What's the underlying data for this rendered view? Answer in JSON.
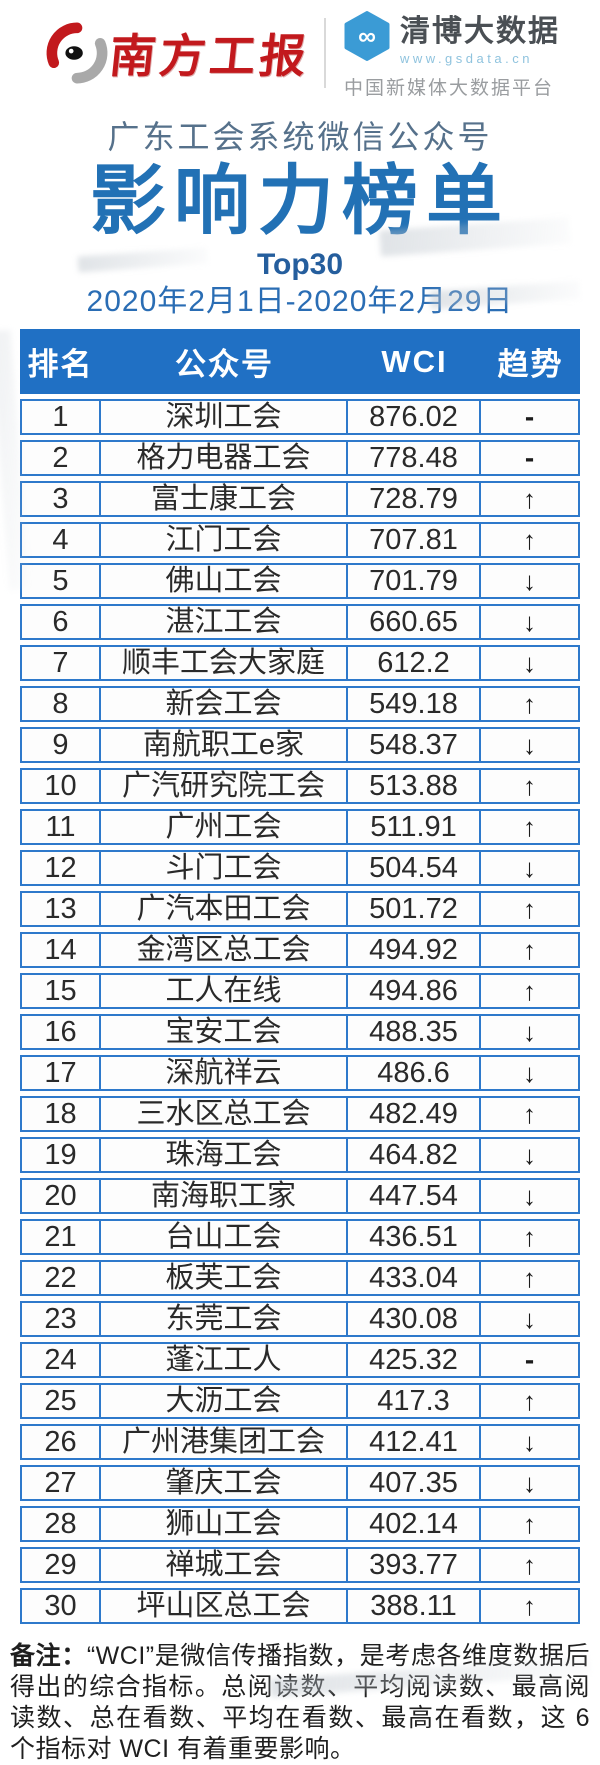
{
  "header": {
    "left_logo_text": "南方工报",
    "right_logo_name": "清博大数据",
    "right_logo_url": "www.gsdata.cn",
    "right_logo_tagline": "中国新媒体大数据平台",
    "infinity_glyph": "∞"
  },
  "title": {
    "subtitle": "广东工会系统微信公众号",
    "main": "影响力榜单",
    "top_label": "Top30",
    "date_range": "2020年2月1日-2020年2月29日"
  },
  "chart_data": {
    "type": "table",
    "title": "广东工会系统微信公众号影响力榜单 Top30",
    "date_range": "2020年2月1日-2020年2月29日",
    "columns": [
      "排名",
      "公众号",
      "WCI",
      "趋势"
    ],
    "rows": [
      [
        "1",
        "深圳工会",
        "876.02",
        "-"
      ],
      [
        "2",
        "格力电器工会",
        "778.48",
        "-"
      ],
      [
        "3",
        "富士康工会",
        "728.79",
        "↑"
      ],
      [
        "4",
        "江门工会",
        "707.81",
        "↑"
      ],
      [
        "5",
        "佛山工会",
        "701.79",
        "↓"
      ],
      [
        "6",
        "湛江工会",
        "660.65",
        "↓"
      ],
      [
        "7",
        "顺丰工会大家庭",
        "612.2",
        "↓"
      ],
      [
        "8",
        "新会工会",
        "549.18",
        "↑"
      ],
      [
        "9",
        "南航职工e家",
        "548.37",
        "↓"
      ],
      [
        "10",
        "广汽研究院工会",
        "513.88",
        "↑"
      ],
      [
        "11",
        "广州工会",
        "511.91",
        "↑"
      ],
      [
        "12",
        "斗门工会",
        "504.54",
        "↓"
      ],
      [
        "13",
        "广汽本田工会",
        "501.72",
        "↑"
      ],
      [
        "14",
        "金湾区总工会",
        "494.92",
        "↑"
      ],
      [
        "15",
        "工人在线",
        "494.86",
        "↑"
      ],
      [
        "16",
        "宝安工会",
        "488.35",
        "↓"
      ],
      [
        "17",
        "深航祥云",
        "486.6",
        "↓"
      ],
      [
        "18",
        "三水区总工会",
        "482.49",
        "↑"
      ],
      [
        "19",
        "珠海工会",
        "464.82",
        "↓"
      ],
      [
        "20",
        "南海职工家",
        "447.54",
        "↓"
      ],
      [
        "21",
        "台山工会",
        "436.51",
        "↑"
      ],
      [
        "22",
        "板芙工会",
        "433.04",
        "↑"
      ],
      [
        "23",
        "东莞工会",
        "430.08",
        "↓"
      ],
      [
        "24",
        "蓬江工人",
        "425.32",
        "-"
      ],
      [
        "25",
        "大沥工会",
        "417.3",
        "↑"
      ],
      [
        "26",
        "广州港集团工会",
        "412.41",
        "↓"
      ],
      [
        "27",
        "肇庆工会",
        "407.35",
        "↓"
      ],
      [
        "28",
        "狮山工会",
        "402.14",
        "↑"
      ],
      [
        "29",
        "禅城工会",
        "393.77",
        "↑"
      ],
      [
        "30",
        "坪山区总工会",
        "388.11",
        "↑"
      ]
    ]
  },
  "note": {
    "label": "备注：",
    "text": "“WCI”是微信传播指数，是考虑各维度数据后得出的综合指标。总阅读数、平均阅读数、最高阅读数、总在看数、平均在看数、最高在看数，这 6 个指标对 WCI 有着重要影响。"
  },
  "colors": {
    "header_blue": "#2070c4",
    "border_blue": "#2e79cb",
    "title_blue": "#2271b5",
    "subtitle_gray_blue": "#56718b",
    "date_blue": "#2a6db4",
    "brand_red": "#c2191d",
    "hexagon_blue": "#3b9bd5",
    "url_light_blue": "#8fc3de",
    "text_dark": "#2a2a2a"
  }
}
